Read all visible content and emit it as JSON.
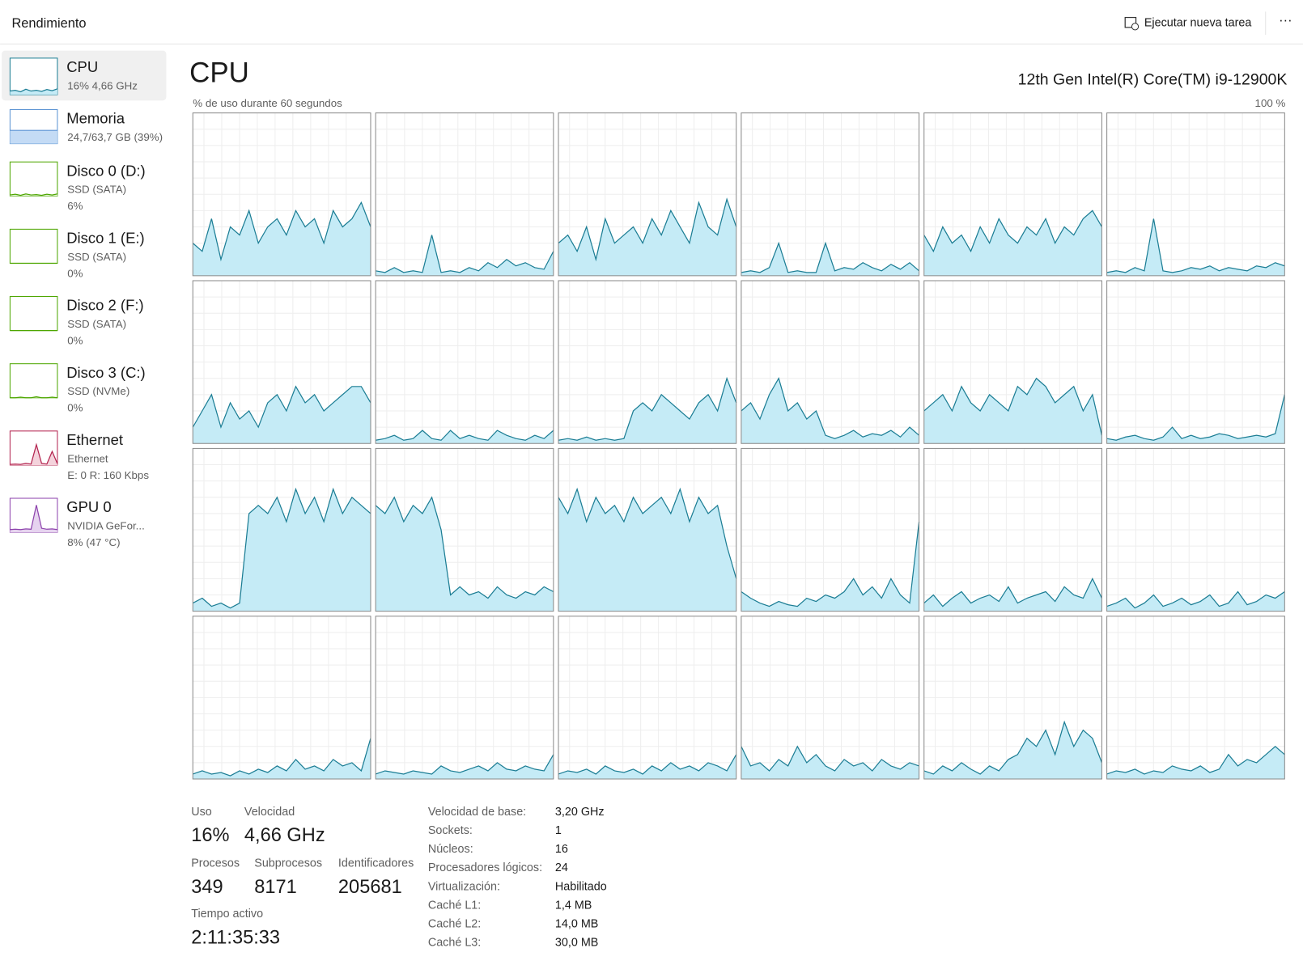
{
  "header": {
    "title": "Rendimiento",
    "new_task": "Ejecutar nueva tarea",
    "more": "···"
  },
  "sidebar": [
    {
      "name": "CPU",
      "lines": [
        "16% 4,66 GHz"
      ],
      "color": "#1b7d94",
      "fill": "#c5ebf6",
      "history": [
        10,
        12,
        8,
        15,
        10,
        12,
        9,
        14,
        11,
        16
      ]
    },
    {
      "name": "Memoria",
      "lines": [
        "24,7/63,7 GB (39%)"
      ],
      "color": "#5b93d3",
      "fill": "#c4dbf5",
      "history": [
        39,
        39,
        39,
        39,
        39,
        39,
        39,
        39,
        39,
        39
      ]
    },
    {
      "name": "Disco 0 (D:)",
      "lines": [
        "SSD (SATA)",
        "6%"
      ],
      "color": "#4da600",
      "fill": "#e2f2d5",
      "history": [
        3,
        5,
        2,
        6,
        3,
        4,
        2,
        5,
        3,
        6
      ]
    },
    {
      "name": "Disco 1 (E:)",
      "lines": [
        "SSD (SATA)",
        "0%"
      ],
      "color": "#4da600",
      "fill": "#e2f2d5",
      "history": [
        0,
        0,
        0,
        0,
        0,
        0,
        0,
        0,
        0,
        0
      ]
    },
    {
      "name": "Disco 2 (F:)",
      "lines": [
        "SSD (SATA)",
        "0%"
      ],
      "color": "#4da600",
      "fill": "#e2f2d5",
      "history": [
        0,
        0,
        0,
        0,
        0,
        0,
        0,
        0,
        0,
        0
      ]
    },
    {
      "name": "Disco 3 (C:)",
      "lines": [
        "SSD (NVMe)",
        "0%"
      ],
      "color": "#4da600",
      "fill": "#e2f2d5",
      "history": [
        0,
        0,
        2,
        0,
        0,
        3,
        0,
        0,
        2,
        0
      ]
    },
    {
      "name": "Ethernet",
      "lines": [
        "Ethernet",
        "E: 0 R: 160 Kbps"
      ],
      "color": "#b3244f",
      "fill": "#f4d3dc",
      "history": [
        2,
        3,
        2,
        5,
        3,
        60,
        5,
        3,
        40,
        4
      ]
    },
    {
      "name": "GPU 0",
      "lines": [
        "NVIDIA GeFor...",
        "8% (47 °C)"
      ],
      "color": "#8e44ad",
      "fill": "#e6d3ef",
      "history": [
        8,
        9,
        8,
        10,
        9,
        80,
        12,
        9,
        10,
        8
      ]
    }
  ],
  "cpu": {
    "title": "CPU",
    "model": "12th Gen Intel(R) Core(TM) i9-12900K",
    "axis_label": "% de uso durante 60 segundos",
    "ymax_label": "100 %",
    "ylim": [
      0,
      100
    ],
    "color": "#1b7d94",
    "fill": "#c5ebf6",
    "cores": [
      [
        20,
        15,
        35,
        10,
        30,
        25,
        40,
        20,
        30,
        35,
        25,
        40,
        30,
        35,
        20,
        40,
        30,
        35,
        45,
        30
      ],
      [
        3,
        2,
        5,
        2,
        3,
        2,
        25,
        2,
        3,
        2,
        5,
        3,
        8,
        5,
        10,
        6,
        8,
        5,
        4,
        15
      ],
      [
        20,
        25,
        15,
        30,
        10,
        35,
        20,
        25,
        30,
        20,
        35,
        25,
        40,
        30,
        20,
        45,
        30,
        25,
        47,
        30
      ],
      [
        2,
        3,
        2,
        5,
        20,
        2,
        3,
        2,
        2,
        20,
        3,
        5,
        4,
        8,
        5,
        3,
        7,
        4,
        8,
        3
      ],
      [
        25,
        15,
        30,
        20,
        25,
        15,
        30,
        20,
        35,
        25,
        20,
        30,
        25,
        35,
        20,
        30,
        25,
        35,
        40,
        30
      ],
      [
        2,
        3,
        2,
        5,
        3,
        35,
        3,
        2,
        3,
        5,
        4,
        6,
        3,
        5,
        4,
        3,
        6,
        5,
        8,
        6
      ],
      [
        10,
        20,
        30,
        10,
        25,
        15,
        20,
        10,
        25,
        30,
        20,
        35,
        25,
        30,
        20,
        25,
        30,
        35,
        35,
        25
      ],
      [
        2,
        3,
        5,
        2,
        3,
        8,
        3,
        2,
        8,
        3,
        5,
        3,
        2,
        8,
        5,
        3,
        2,
        5,
        3,
        8
      ],
      [
        2,
        3,
        2,
        4,
        2,
        3,
        2,
        3,
        20,
        25,
        20,
        30,
        25,
        20,
        15,
        25,
        30,
        20,
        40,
        25
      ],
      [
        20,
        25,
        15,
        30,
        40,
        20,
        25,
        15,
        20,
        5,
        3,
        5,
        8,
        4,
        6,
        5,
        8,
        4,
        10,
        5
      ],
      [
        20,
        25,
        30,
        20,
        35,
        25,
        20,
        30,
        25,
        20,
        35,
        30,
        40,
        35,
        25,
        30,
        35,
        20,
        30,
        5
      ],
      [
        3,
        2,
        4,
        5,
        3,
        2,
        4,
        10,
        3,
        5,
        3,
        4,
        6,
        5,
        3,
        4,
        5,
        4,
        6,
        30
      ],
      [
        5,
        8,
        3,
        5,
        2,
        5,
        60,
        65,
        60,
        70,
        55,
        75,
        60,
        70,
        55,
        75,
        60,
        70,
        65,
        60
      ],
      [
        65,
        60,
        70,
        55,
        65,
        60,
        70,
        50,
        10,
        15,
        10,
        12,
        8,
        15,
        10,
        8,
        12,
        10,
        15,
        12
      ],
      [
        70,
        60,
        75,
        55,
        70,
        60,
        65,
        55,
        70,
        60,
        65,
        70,
        60,
        75,
        55,
        70,
        60,
        65,
        40,
        20
      ],
      [
        12,
        8,
        5,
        3,
        6,
        4,
        3,
        8,
        6,
        10,
        8,
        12,
        20,
        10,
        15,
        8,
        20,
        10,
        5,
        55
      ],
      [
        5,
        10,
        3,
        8,
        12,
        5,
        8,
        10,
        6,
        15,
        5,
        8,
        10,
        12,
        6,
        15,
        10,
        8,
        20,
        8
      ],
      [
        3,
        5,
        8,
        2,
        5,
        10,
        3,
        5,
        8,
        4,
        6,
        10,
        3,
        5,
        12,
        4,
        6,
        10,
        8,
        12
      ],
      [
        3,
        5,
        3,
        4,
        2,
        5,
        3,
        6,
        4,
        8,
        5,
        12,
        6,
        8,
        5,
        12,
        8,
        10,
        5,
        25
      ],
      [
        3,
        5,
        4,
        3,
        5,
        4,
        3,
        8,
        5,
        4,
        6,
        8,
        5,
        10,
        6,
        5,
        8,
        6,
        5,
        15
      ],
      [
        3,
        5,
        4,
        6,
        3,
        8,
        5,
        4,
        6,
        3,
        8,
        5,
        10,
        6,
        8,
        5,
        10,
        8,
        5,
        15
      ],
      [
        20,
        8,
        10,
        5,
        12,
        8,
        20,
        10,
        15,
        8,
        5,
        12,
        8,
        10,
        5,
        12,
        8,
        6,
        10,
        8
      ],
      [
        5,
        3,
        8,
        5,
        10,
        6,
        3,
        8,
        5,
        12,
        15,
        25,
        20,
        30,
        15,
        35,
        20,
        30,
        25,
        10
      ],
      [
        3,
        5,
        4,
        6,
        3,
        5,
        4,
        8,
        6,
        5,
        8,
        4,
        6,
        15,
        8,
        12,
        10,
        15,
        20,
        15
      ]
    ]
  },
  "stats": [
    {
      "label": "Uso",
      "value": "16%"
    },
    {
      "label": "Velocidad",
      "value": "4,66 GHz"
    },
    {
      "label": "Procesos",
      "value": "349"
    },
    {
      "label": "Subprocesos",
      "value": "8171"
    },
    {
      "label": "Identificadores",
      "value": "205681"
    },
    {
      "label": "Tiempo activo",
      "value": "2:11:35:33"
    }
  ],
  "details": [
    [
      "Velocidad de base:",
      "3,20 GHz"
    ],
    [
      "Sockets:",
      "1"
    ],
    [
      "Núcleos:",
      "16"
    ],
    [
      "Procesadores lógicos:",
      "24"
    ],
    [
      "Virtualización:",
      "Habilitado"
    ],
    [
      "Caché L1:",
      "1,4 MB"
    ],
    [
      "Caché L2:",
      "14,0 MB"
    ],
    [
      "Caché L3:",
      "30,0 MB"
    ]
  ]
}
